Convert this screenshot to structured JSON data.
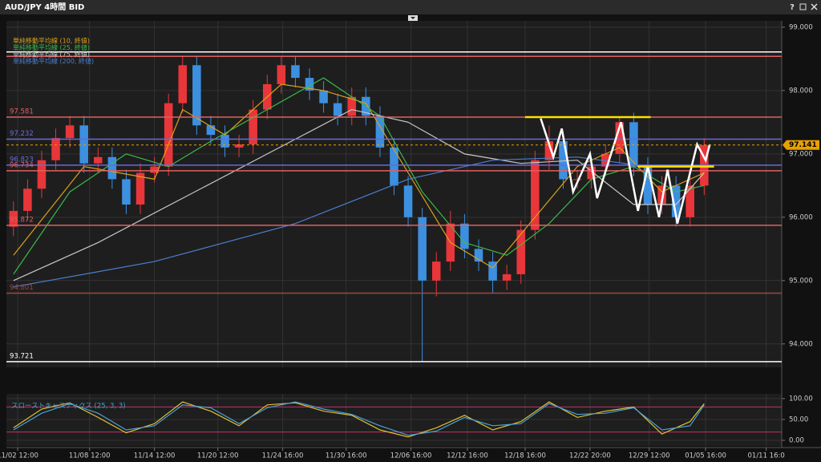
{
  "window": {
    "title": "AUD/JPY 4時間 BID",
    "help": "?"
  },
  "chart_data": [
    {
      "type": "candlestick",
      "x": [
        0,
        1,
        2,
        3,
        4,
        5,
        6,
        7,
        8,
        9,
        10,
        11,
        12,
        13,
        14,
        15,
        16,
        17,
        18,
        19,
        20,
        21,
        22,
        23,
        24,
        25,
        26,
        27,
        28,
        29,
        30,
        31,
        32,
        33,
        34,
        35,
        36,
        37,
        38,
        39,
        40,
        41,
        42,
        43,
        44,
        45,
        46,
        47,
        48,
        49
      ],
      "open": [
        95.85,
        96.1,
        96.45,
        96.9,
        97.25,
        97.45,
        96.85,
        96.95,
        96.6,
        96.2,
        96.7,
        96.8,
        97.8,
        98.4,
        97.45,
        97.3,
        97.1,
        97.15,
        97.7,
        98.1,
        98.4,
        98.2,
        98.0,
        97.8,
        97.6,
        97.9,
        97.6,
        97.1,
        96.5,
        96.0,
        95.0,
        95.3,
        95.9,
        95.5,
        95.3,
        95.0,
        95.1,
        95.8,
        96.9,
        97.2,
        96.6,
        96.6,
        96.8,
        97.0,
        97.5,
        96.8,
        96.2,
        96.5,
        96.0,
        96.5
      ],
      "high": [
        96.25,
        96.6,
        97.05,
        97.4,
        97.6,
        97.6,
        97.1,
        97.1,
        96.75,
        96.85,
        96.95,
        97.95,
        98.55,
        98.55,
        97.6,
        97.45,
        97.3,
        97.85,
        98.25,
        98.55,
        98.55,
        98.35,
        98.15,
        97.95,
        98.05,
        98.05,
        97.75,
        97.25,
        96.65,
        96.15,
        95.45,
        96.1,
        96.05,
        95.65,
        95.45,
        95.25,
        95.95,
        97.05,
        97.45,
        97.35,
        96.75,
        96.95,
        97.15,
        97.58,
        97.65,
        96.95,
        96.65,
        96.65,
        96.65,
        97.25
      ],
      "low": [
        95.7,
        95.95,
        96.3,
        96.75,
        97.1,
        96.7,
        96.7,
        96.45,
        96.05,
        96.05,
        96.55,
        96.65,
        97.65,
        97.3,
        97.15,
        96.95,
        96.95,
        97.0,
        97.55,
        97.95,
        98.05,
        97.85,
        97.65,
        97.45,
        97.45,
        97.45,
        96.95,
        96.35,
        95.85,
        93.72,
        94.75,
        95.15,
        95.35,
        95.15,
        94.8,
        94.85,
        94.95,
        95.65,
        96.75,
        96.45,
        96.45,
        96.45,
        96.65,
        96.85,
        96.65,
        96.05,
        96.05,
        95.85,
        95.85,
        96.35
      ],
      "close": [
        96.1,
        96.45,
        96.9,
        97.25,
        97.45,
        96.85,
        96.95,
        96.6,
        96.2,
        96.7,
        96.8,
        97.8,
        98.4,
        97.45,
        97.3,
        97.1,
        97.15,
        97.7,
        98.1,
        98.4,
        98.2,
        98.0,
        97.8,
        97.6,
        97.9,
        97.6,
        97.1,
        96.5,
        96.0,
        95.0,
        95.3,
        95.9,
        95.5,
        95.3,
        95.0,
        95.1,
        95.8,
        96.9,
        97.2,
        96.6,
        96.6,
        96.8,
        97.0,
        97.5,
        96.8,
        96.2,
        96.5,
        96.0,
        96.5,
        97.14
      ],
      "up_color": "#e8363a",
      "down_color": "#3d8fe0",
      "xlim": [
        -0.5,
        54.5
      ],
      "xticks": [
        {
          "value": 0.3,
          "label": "11/02 12:00"
        },
        {
          "value": 5.4,
          "label": "11/08 12:00"
        },
        {
          "value": 10.0,
          "label": "11/14 12:00"
        },
        {
          "value": 14.5,
          "label": "11/20 12:00"
        },
        {
          "value": 19.1,
          "label": "11/24 16:00"
        },
        {
          "value": 23.6,
          "label": "11/30 16:00"
        },
        {
          "value": 28.2,
          "label": "12/06 16:00"
        },
        {
          "value": 32.2,
          "label": "12/12 16:00"
        },
        {
          "value": 36.3,
          "label": "12/18 16:00"
        },
        {
          "value": 40.9,
          "label": "12/22 20:00"
        },
        {
          "value": 45.1,
          "label": "12/29 12:00"
        },
        {
          "value": 49.1,
          "label": "01/05 16:00"
        },
        {
          "value": 53.4,
          "label": "01/11 16:0"
        }
      ],
      "ylim": [
        93.63,
        99.1
      ],
      "yticks": [
        {
          "value": 99,
          "label": "99.000"
        },
        {
          "value": 98,
          "label": "98.000"
        },
        {
          "value": 97,
          "label": "97.000"
        },
        {
          "value": 96,
          "label": "96.000"
        },
        {
          "value": 95,
          "label": "95.000"
        },
        {
          "value": 94,
          "label": "94.000"
        }
      ],
      "grid": true,
      "legend": "top-left",
      "series": [
        {
          "name": "単純移動平均線 (10, 終値)",
          "color": "#d9a21b",
          "x": [
            0,
            5,
            10,
            12,
            15,
            19,
            22,
            25,
            28,
            31,
            34,
            37,
            40,
            43,
            46,
            49
          ],
          "values": [
            95.4,
            96.8,
            96.6,
            97.7,
            97.3,
            98.1,
            98.0,
            97.8,
            96.7,
            95.6,
            95.2,
            96.0,
            96.8,
            97.1,
            96.4,
            96.7
          ]
        },
        {
          "name": "単純移動平均線 (25, 終値)",
          "color": "#3cb84a",
          "x": [
            0,
            4,
            8,
            11,
            14,
            18,
            22,
            26,
            29,
            32,
            35,
            38,
            41,
            44,
            47,
            49
          ],
          "values": [
            95.1,
            96.4,
            97.0,
            96.8,
            97.2,
            97.7,
            98.2,
            97.6,
            96.4,
            95.6,
            95.4,
            95.9,
            96.6,
            96.8,
            96.4,
            96.5
          ]
        },
        {
          "name": "単純移動平均線 (75, 終値)",
          "color": "#c8c8c8",
          "x": [
            0,
            6,
            12,
            18,
            24,
            28,
            32,
            36,
            40,
            44,
            47,
            49
          ],
          "values": [
            95.0,
            95.6,
            96.3,
            97.0,
            97.7,
            97.5,
            97.0,
            96.85,
            96.9,
            96.2,
            96.2,
            96.7
          ]
        },
        {
          "name": "単純移動平均線 (200, 終値)",
          "color": "#4a7fd0",
          "x": [
            0,
            10,
            20,
            28,
            34,
            40,
            45,
            49
          ],
          "values": [
            94.9,
            95.3,
            95.9,
            96.6,
            96.9,
            96.95,
            96.8,
            96.8
          ]
        }
      ],
      "levels": [
        {
          "value": 97.581,
          "color": "#e06060"
        },
        {
          "value": 97.232,
          "color": "#6a6ad8"
        },
        {
          "value": 96.823,
          "color": "#6a6ad8"
        },
        {
          "value": 96.734,
          "color": "#e06060"
        },
        {
          "value": 95.872,
          "color": "#e06060"
        },
        {
          "value": 94.801,
          "color": "#a04545"
        },
        {
          "value": 93.721,
          "color": "#ffffff"
        }
      ],
      "lines": [
        {
          "value": 98.61,
          "color": "#ffffff"
        },
        {
          "value": 98.54,
          "color": "#e06060"
        }
      ],
      "last_price": 97.141,
      "last_color": "#e8a000",
      "drawings": {
        "zigzag": {
          "color": "#ffffff",
          "x": [
            37.4,
            38.3,
            38.9,
            39.7,
            40.9,
            41.4,
            43.1,
            44.3,
            45.0,
            45.8,
            46.4,
            47.1,
            48.5,
            49.1,
            49.4
          ],
          "y": [
            97.56,
            96.95,
            97.4,
            96.4,
            97.0,
            96.3,
            97.5,
            96.1,
            96.8,
            96.0,
            96.75,
            95.9,
            97.15,
            96.9,
            97.15
          ]
        },
        "resistance": [
          {
            "color": "#ffe000",
            "x": [
              36.3,
              45.2
            ],
            "y": 97.58
          },
          {
            "color": "#ffe000",
            "x": [
              44.3,
              49.7
            ],
            "y": 96.8
          }
        ]
      }
    },
    {
      "type": "line",
      "title": "スローストキャスティクス (25, 3, 3)",
      "xlim": [
        -0.5,
        54.5
      ],
      "ylim": [
        -13.5,
        111.5
      ],
      "yticks": [
        {
          "value": 100,
          "label": "100.00"
        },
        {
          "value": 50,
          "label": "50.00"
        },
        {
          "value": 0,
          "label": "0.00"
        }
      ],
      "lines": [
        {
          "value": 80,
          "color": "#c0306a"
        },
        {
          "value": 20,
          "color": "#c0306a"
        }
      ],
      "series": [
        {
          "color": "#e0c030",
          "x": [
            0,
            2,
            4,
            6,
            8,
            10,
            12,
            14,
            16,
            18,
            20,
            22,
            24,
            26,
            28,
            30,
            32,
            34,
            36,
            38,
            40,
            42,
            44,
            46,
            48,
            49
          ],
          "values": [
            30,
            75,
            90,
            55,
            18,
            40,
            92,
            70,
            35,
            85,
            90,
            70,
            60,
            25,
            8,
            30,
            60,
            25,
            45,
            92,
            55,
            70,
            80,
            15,
            45,
            88
          ]
        },
        {
          "color": "#4aa0d8",
          "x": [
            0,
            2,
            4,
            6,
            8,
            10,
            12,
            14,
            16,
            18,
            20,
            22,
            24,
            26,
            28,
            30,
            32,
            34,
            36,
            38,
            40,
            42,
            44,
            46,
            48,
            49
          ],
          "values": [
            25,
            65,
            88,
            65,
            25,
            35,
            85,
            78,
            40,
            78,
            92,
            75,
            62,
            35,
            12,
            22,
            55,
            35,
            40,
            88,
            62,
            65,
            78,
            25,
            35,
            85
          ]
        }
      ]
    }
  ]
}
